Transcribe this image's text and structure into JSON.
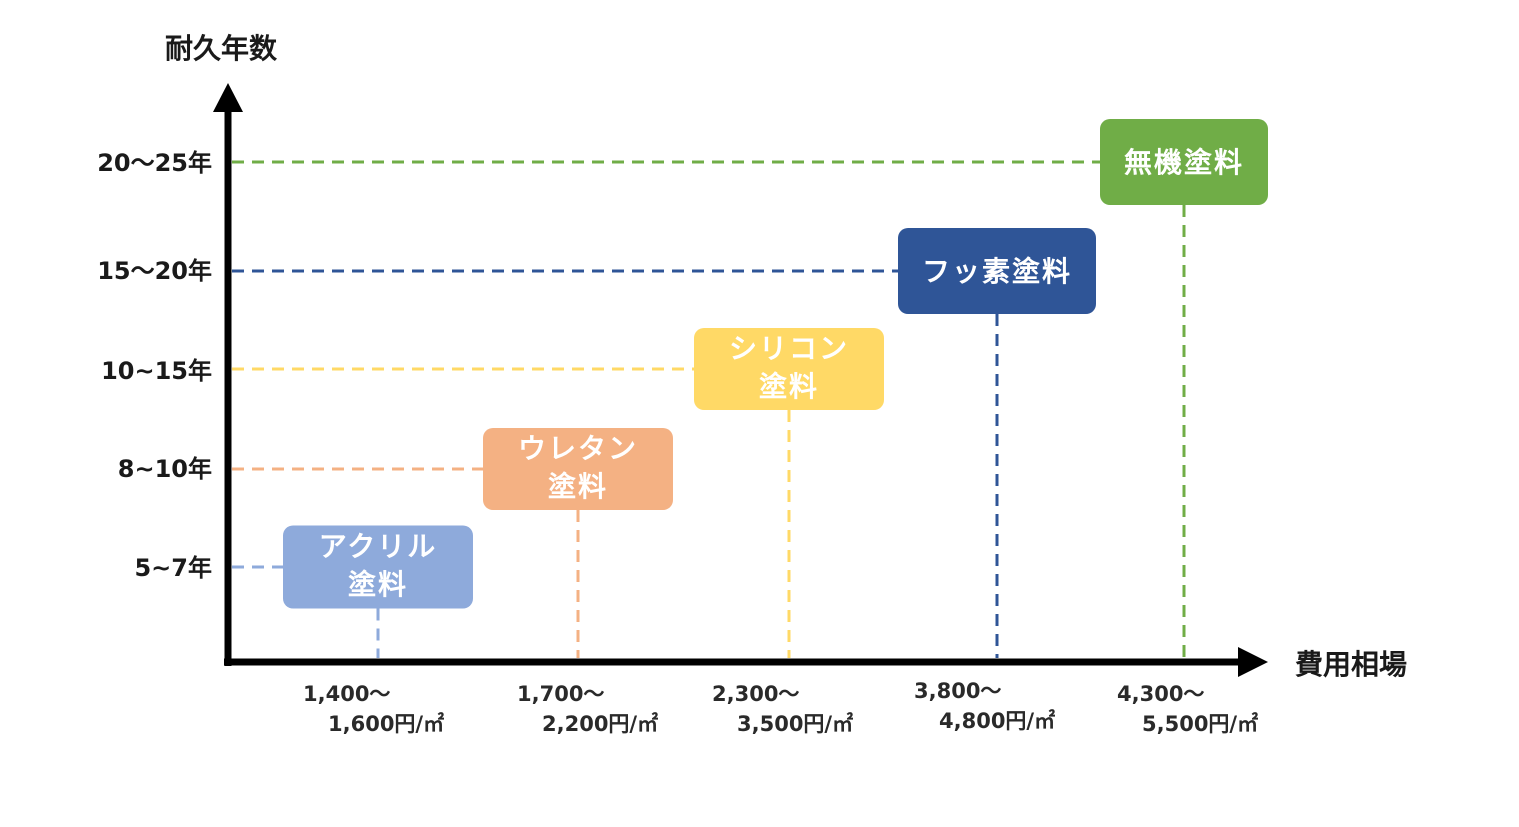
{
  "chart_data": {
    "type": "scatter",
    "title": "",
    "ylabel": "耐久年数",
    "xlabel": "費用相場",
    "y_ticks": [
      "20〜25年",
      "15〜20年",
      "10~15年",
      "8~10年",
      "5~7年"
    ],
    "points": [
      {
        "name_lines": [
          "アクリル",
          "塗料"
        ],
        "x_lines": [
          "1,400〜",
          "1,600円/㎡"
        ],
        "y_label": "5~7年",
        "x_range": [
          1400,
          1600
        ],
        "y_range": [
          5,
          7
        ],
        "color": "#8eaadb"
      },
      {
        "name_lines": [
          "ウレタン",
          "塗料"
        ],
        "x_lines": [
          "1,700〜",
          "2,200円/㎡"
        ],
        "y_label": "8~10年",
        "x_range": [
          1700,
          2200
        ],
        "y_range": [
          8,
          10
        ],
        "color": "#f4b183"
      },
      {
        "name_lines": [
          "シリコン",
          "塗料"
        ],
        "x_lines": [
          "2,300〜",
          "3,500円/㎡"
        ],
        "y_label": "10~15年",
        "x_range": [
          2300,
          3500
        ],
        "y_range": [
          10,
          15
        ],
        "color": "#ffd966"
      },
      {
        "name_lines": [
          "フッ素塗料"
        ],
        "x_lines": [
          "3,800〜",
          "4,800円/㎡"
        ],
        "y_label": "15〜20年",
        "x_range": [
          3800,
          4800
        ],
        "y_range": [
          15,
          20
        ],
        "color": "#2f5597"
      },
      {
        "name_lines": [
          "無機塗料"
        ],
        "x_lines": [
          "4,300〜",
          "5,500円/㎡"
        ],
        "y_label": "20〜25年",
        "x_range": [
          4300,
          5500
        ],
        "y_range": [
          20,
          25
        ],
        "color": "#70ad47"
      }
    ],
    "grid": false,
    "legend": "none"
  }
}
